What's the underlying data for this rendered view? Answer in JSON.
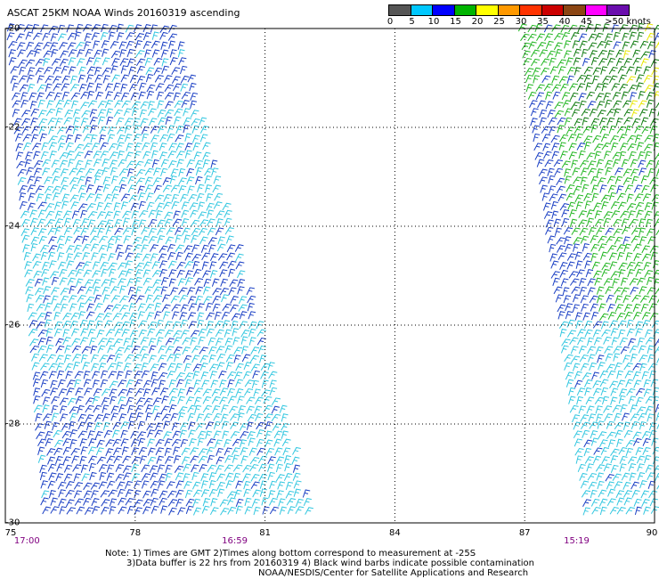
{
  "title": "ASCAT 25KM NOAA Winds 20160319 ascending",
  "legend": {
    "colors": [
      "#555555",
      "#00c8ff",
      "#0000ff",
      "#00b400",
      "#ffff00",
      "#ff9900",
      "#ff3300",
      "#cc0000",
      "#8b4513",
      "#ff00ff",
      "#6a0dad"
    ],
    "labels": [
      "0",
      "5",
      "10",
      "15",
      "20",
      "25",
      "30",
      "35",
      "40",
      "45",
      ">50 knots"
    ]
  },
  "axes": {
    "x_ticks": [
      "75",
      "78",
      "81",
      "84",
      "87",
      "90"
    ],
    "y_ticks": [
      "-20",
      "-22",
      "-24",
      "-26",
      "-28",
      "-30"
    ]
  },
  "pass_times": [
    {
      "label": "17:00",
      "lon": 75.5
    },
    {
      "label": "16:59",
      "lon": 80.3
    },
    {
      "label": "15:19",
      "lon": 88.2
    }
  ],
  "notes": {
    "line1": "Note: 1) Times are GMT 2)Times along bottom correspond to measurement at -25S",
    "line2": "3)Data buffer is 22 hrs from 20160319 4) Black wind barbs indicate possible contamination",
    "line3": "NOAA/NESDIS/Center for Satellite Applications and Research"
  },
  "colors": {
    "grid": "#000000",
    "time_label": "#800080",
    "barb_light_blue": "#33c7e0",
    "barb_dark_blue": "#1a3fc4",
    "barb_green": "#22b622",
    "barb_dark_green": "#0e7a0e",
    "barb_yellow": "#e8e800"
  }
}
